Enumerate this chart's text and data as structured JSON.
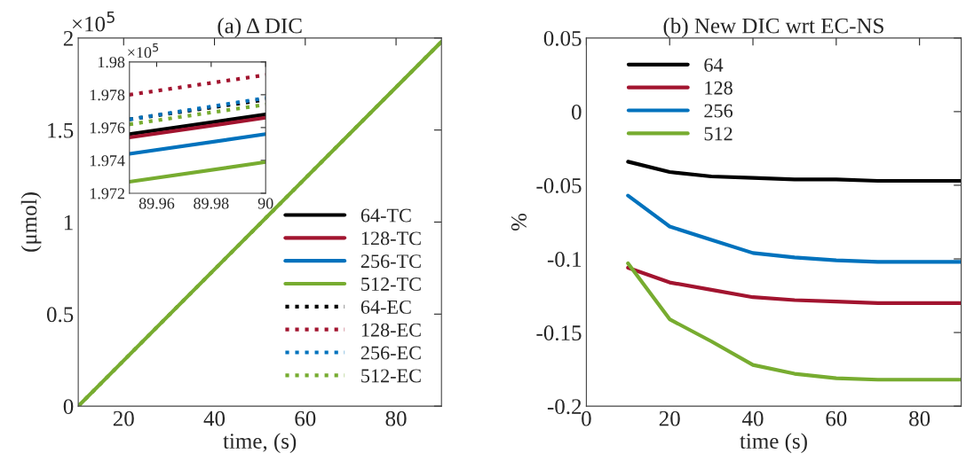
{
  "chart_data": [
    {
      "type": "line",
      "title": "(a) Δ DIC",
      "xlabel": "time, (s)",
      "ylabel": "(μmol)",
      "annotations": [
        "×10$^{5}$"
      ],
      "xlim": [
        10,
        90
      ],
      "ylim": [
        0,
        2
      ],
      "xticks": [
        20,
        40,
        60,
        80
      ],
      "yticks": [
        0,
        0.5,
        1,
        1.5,
        2
      ],
      "grid": false,
      "legend": "bottom right",
      "series": [
        {
          "name": "64-TC",
          "color": "#000000",
          "line_style": "solid",
          "values": [
            null,
            null
          ]
        },
        {
          "name": "128-TC",
          "color": "#a2142f",
          "line_style": "solid",
          "values": [
            null,
            null
          ]
        },
        {
          "name": "256-TC",
          "color": "#0072bd",
          "line_style": "solid",
          "values": [
            null,
            null
          ]
        },
        {
          "name": "512-TC",
          "color": "#77ac30",
          "line_style": "solid",
          "x": [
            10,
            90
          ],
          "values": [
            0,
            1.98
          ]
        },
        {
          "name": "64-EC",
          "color": "#000000",
          "line_style": "dotted",
          "values": [
            null,
            null
          ]
        },
        {
          "name": "128-EC",
          "color": "#a2142f",
          "line_style": "dotted",
          "values": [
            null,
            null
          ]
        },
        {
          "name": "256-EC",
          "color": "#0072bd",
          "line_style": "dotted",
          "values": [
            null,
            null
          ]
        },
        {
          "name": "512-EC",
          "color": "#77ac30",
          "line_style": "dotted",
          "x": [
            10,
            90
          ],
          "values": [
            0,
            1.98
          ]
        }
      ]
    },
    {
      "type": "line",
      "annotations": [
        "×10$^{5}$"
      ],
      "xlim": [
        89.95,
        90
      ],
      "ylim": [
        1.972,
        1.98
      ],
      "xticks": [
        89.96,
        89.98,
        90
      ],
      "yticks": [
        1.972,
        1.974,
        1.976,
        1.978,
        1.98
      ],
      "grid": false,
      "series": [
        {
          "color": "#000000",
          "line_style": "solid",
          "x": [
            89.95,
            90
          ],
          "values": [
            1.9756,
            1.9768
          ]
        },
        {
          "color": "#a2142f",
          "line_style": "solid",
          "x": [
            89.95,
            90
          ],
          "values": [
            1.9754,
            1.9766
          ]
        },
        {
          "color": "#0072bd",
          "line_style": "solid",
          "x": [
            89.95,
            90
          ],
          "values": [
            1.9744,
            1.9756
          ]
        },
        {
          "color": "#77ac30",
          "line_style": "solid",
          "x": [
            89.95,
            90
          ],
          "values": [
            1.9727,
            1.9739
          ]
        },
        {
          "color": "#000000",
          "line_style": "dotted",
          "x": [
            89.95,
            90
          ],
          "values": [
            1.9765,
            1.9777
          ]
        },
        {
          "color": "#a2142f",
          "line_style": "dotted",
          "x": [
            89.95,
            90
          ],
          "values": [
            1.978,
            1.9792
          ]
        },
        {
          "color": "#0072bd",
          "line_style": "dotted",
          "x": [
            89.95,
            90
          ],
          "values": [
            1.9765,
            1.9778
          ]
        },
        {
          "color": "#77ac30",
          "line_style": "dotted",
          "x": [
            89.95,
            90
          ],
          "values": [
            1.9762,
            1.9774
          ]
        }
      ]
    },
    {
      "type": "line",
      "title": "(b) New DIC wrt EC-NS",
      "xlabel": "time (s)",
      "ylabel": "%",
      "xlim": [
        0,
        90
      ],
      "ylim": [
        -0.2,
        0.05
      ],
      "xticks": [
        0,
        20,
        40,
        60,
        80
      ],
      "yticks": [
        -0.2,
        -0.15,
        -0.1,
        -0.05,
        0,
        0.05
      ],
      "grid": false,
      "legend": "top left",
      "x": [
        10,
        20,
        30,
        40,
        50,
        60,
        70,
        80,
        90
      ],
      "series": [
        {
          "name": "64",
          "color": "#000000",
          "values": [
            -0.034,
            -0.041,
            -0.044,
            -0.045,
            -0.046,
            -0.046,
            -0.047,
            -0.047,
            -0.047
          ]
        },
        {
          "name": "128",
          "color": "#a2142f",
          "values": [
            -0.106,
            -0.116,
            -0.121,
            -0.126,
            -0.128,
            -0.129,
            -0.13,
            -0.13,
            -0.13
          ]
        },
        {
          "name": "256",
          "color": "#0072bd",
          "values": [
            -0.057,
            -0.078,
            -0.087,
            -0.096,
            -0.099,
            -0.101,
            -0.102,
            -0.102,
            -0.102
          ]
        },
        {
          "name": "512",
          "color": "#77ac30",
          "values": [
            -0.103,
            -0.141,
            -0.156,
            -0.172,
            -0.178,
            -0.181,
            -0.182,
            -0.182,
            -0.182
          ]
        }
      ]
    }
  ]
}
